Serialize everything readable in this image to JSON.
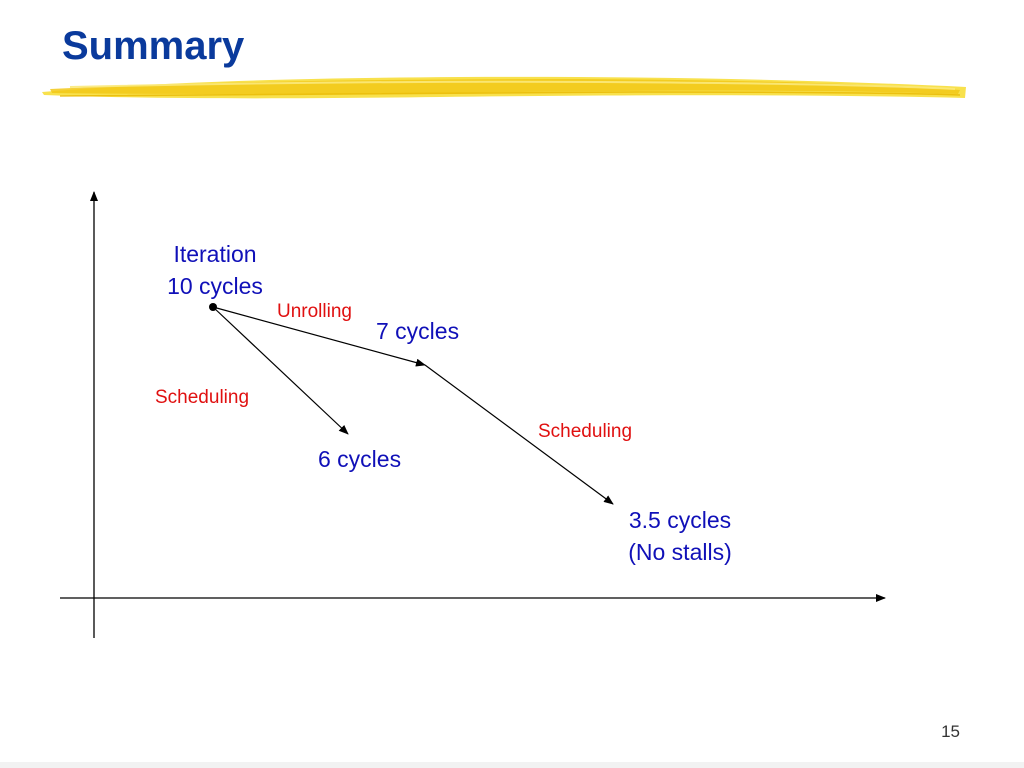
{
  "slide": {
    "title": "Summary",
    "page_number": "15"
  },
  "diagram": {
    "nodes": {
      "start_line1": "Iteration",
      "start_line2": "10 cycles",
      "unrolled": "7 cycles",
      "scheduled": "6 cycles",
      "final_line1": "3.5 cycles",
      "final_line2": "(No stalls)"
    },
    "edges": {
      "unrolling": "Unrolling",
      "scheduling_left": "Scheduling",
      "scheduling_right": "Scheduling"
    }
  },
  "colors": {
    "title": "#0a3a9c",
    "node_text": "#1010b8",
    "edge_label": "#e01010",
    "highlight": "#f5d428"
  }
}
